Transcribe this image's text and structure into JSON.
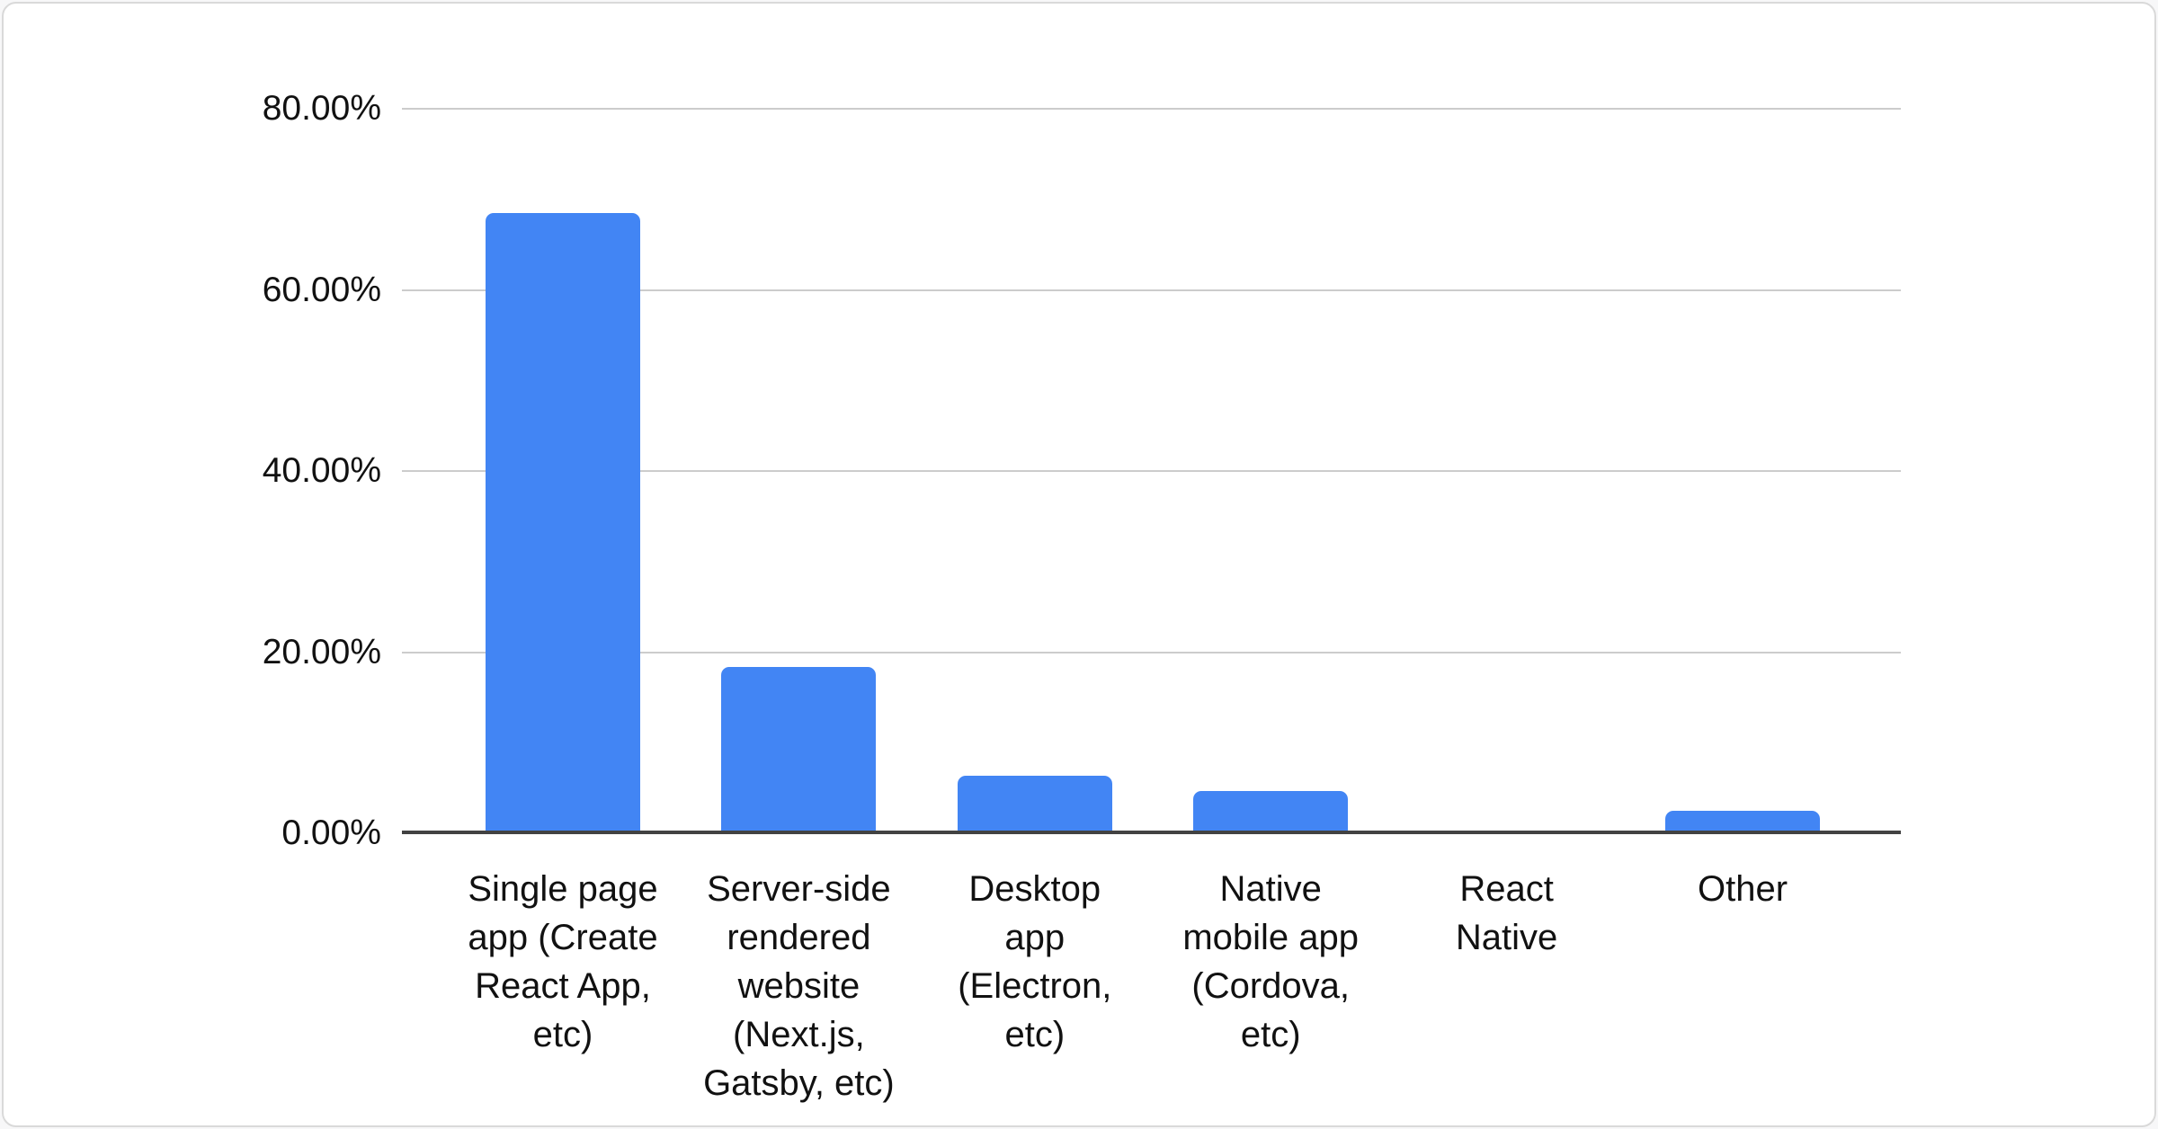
{
  "chart_data": {
    "type": "bar",
    "title": "",
    "xlabel": "",
    "ylabel": "",
    "categories": [
      "Single page app (Create React App, etc)",
      "Server-side rendered website (Next.js, Gatsby, etc)",
      "Desktop app (Electron, etc)",
      "Native mobile app (Cordova, etc)",
      "React Native",
      "Other"
    ],
    "category_display_lines": [
      [
        "Single page",
        "app (Create",
        "React App,",
        "etc)"
      ],
      [
        "Server-side",
        "rendered",
        "website",
        "(Next.js,",
        "Gatsby, etc)"
      ],
      [
        "Desktop",
        "app",
        "(Electron,",
        "etc)"
      ],
      [
        "Native",
        "mobile app",
        "(Cordova,",
        "etc)"
      ],
      [
        "React",
        "Native"
      ],
      [
        "Other"
      ]
    ],
    "values": [
      68.5,
      18.4,
      6.4,
      4.7,
      0,
      2.5
    ],
    "value_unit": "%",
    "ylim": [
      0,
      80
    ],
    "y_ticks": [
      {
        "value": 0,
        "label": "0.00%"
      },
      {
        "value": 20,
        "label": "20.00%"
      },
      {
        "value": 40,
        "label": "40.00%"
      },
      {
        "value": 60,
        "label": "60.00%"
      },
      {
        "value": 80,
        "label": "80.00%"
      }
    ],
    "grid": true,
    "legend": "none",
    "bar_color": "#4285f4",
    "gridline_color": "#cccccc",
    "axis_line_color": "#424242",
    "text_color": "#111111"
  }
}
